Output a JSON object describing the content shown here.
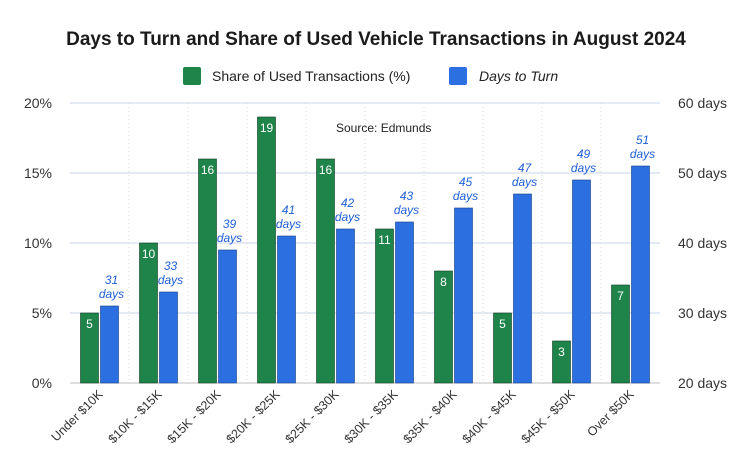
{
  "chart_data": {
    "type": "bar",
    "title": "Days to Turn and Share of Used Vehicle Transactions in August 2024",
    "annotation": "Source: Edmunds",
    "categories": [
      "Under $10K",
      "$10K - $15K",
      "$15K - $20K",
      "$20K - $25K",
      "$25K - $30K",
      "$30K - $35K",
      "$35K - $40K",
      "$40K - $45K",
      "$45K - $50K",
      "Over $50K"
    ],
    "series": [
      {
        "name": "Share of Used Transactions (%)",
        "axis": "left",
        "color": "#1e8449",
        "values": [
          5,
          10,
          16,
          19,
          16,
          11,
          8,
          5,
          3,
          7
        ],
        "labels": [
          "5",
          "10",
          "16",
          "19",
          "16",
          "11",
          "8",
          "5",
          "3",
          "7"
        ]
      },
      {
        "name": "Days to Turn",
        "axis": "right",
        "color": "#2c6fe0",
        "values": [
          31,
          33,
          39,
          41,
          42,
          43,
          45,
          47,
          49,
          51
        ],
        "labels": [
          "31 days",
          "33 days",
          "39 days",
          "41 days",
          "42 days",
          "43 days",
          "45 days",
          "47 days",
          "49 days",
          "51 days"
        ]
      }
    ],
    "y_left": {
      "min": 0,
      "max": 20,
      "ticks": [
        "0%",
        "5%",
        "10%",
        "15%",
        "20%"
      ],
      "tick_values": [
        0,
        5,
        10,
        15,
        20
      ]
    },
    "y_right": {
      "min": 20,
      "max": 60,
      "ticks": [
        "20 days",
        "30 days",
        "40 days",
        "50 days",
        "60 days"
      ],
      "tick_values": [
        20,
        30,
        40,
        50,
        60
      ]
    },
    "legend": {
      "position": "top-center",
      "italic_second": true
    },
    "grid": true
  }
}
